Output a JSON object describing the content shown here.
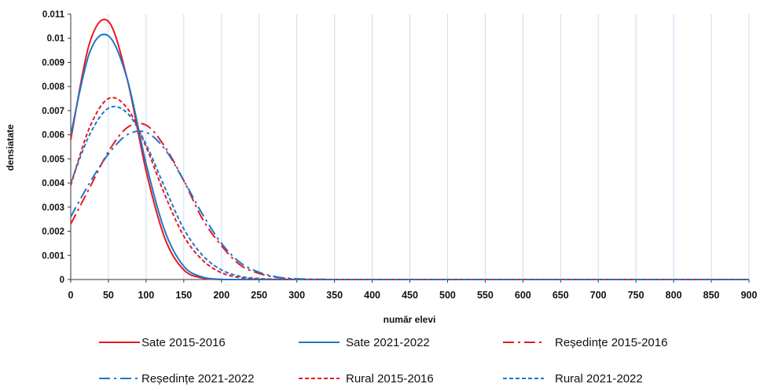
{
  "chart_data": {
    "type": "line",
    "title": "",
    "xlabel": "număr elevi",
    "ylabel": "densiatate",
    "xlim": [
      0,
      900
    ],
    "ylim": [
      0,
      0.011
    ],
    "x_ticks": [
      "0",
      "50",
      "100",
      "150",
      "200",
      "250",
      "300",
      "350",
      "400",
      "450",
      "500",
      "550",
      "600",
      "650",
      "700",
      "750",
      "800",
      "850",
      "900"
    ],
    "y_ticks": [
      "0",
      "0.001",
      "0.002",
      "0.003",
      "0.004",
      "0.005",
      "0.006",
      "0.007",
      "0.008",
      "0.009",
      "0.01",
      "0.011"
    ],
    "grid": "vertical",
    "legend_position": "bottom",
    "x": [
      0,
      25,
      50,
      75,
      100,
      125,
      150,
      175,
      200,
      225,
      250,
      275,
      300,
      350,
      400,
      500,
      600,
      700,
      800,
      900
    ],
    "series": [
      {
        "name": "Sate 2015-2016",
        "color": "#e8191f",
        "dash": "solid",
        "values": [
          0.0058,
          0.0098,
          0.0107,
          0.0083,
          0.0045,
          0.0017,
          0.0004,
          6e-05,
          0,
          0,
          0,
          0,
          0,
          0,
          0,
          0,
          0,
          0,
          0,
          0
        ]
      },
      {
        "name": "Sate 2021-2022",
        "color": "#1f77c9",
        "dash": "solid",
        "values": [
          0.006,
          0.0094,
          0.0101,
          0.0083,
          0.0048,
          0.002,
          0.00055,
          0.0001,
          1e-05,
          0,
          0,
          0,
          0,
          0,
          0,
          0,
          0,
          0,
          0,
          0
        ]
      },
      {
        "name": "Reședințe 2015-2016",
        "color": "#e8191f",
        "dash": "dashdot",
        "values": [
          0.0023,
          0.0038,
          0.0053,
          0.0063,
          0.0064,
          0.0055,
          0.0041,
          0.0025,
          0.0014,
          0.0006,
          0.00025,
          8e-05,
          2e-05,
          0,
          0,
          0,
          0,
          0,
          0,
          0
        ]
      },
      {
        "name": "Reședințe 2021-2022",
        "color": "#1f77c9",
        "dash": "dashdot",
        "values": [
          0.0026,
          0.004,
          0.0052,
          0.006,
          0.0061,
          0.0054,
          0.0041,
          0.0027,
          0.0015,
          0.0007,
          0.0003,
          0.0001,
          3e-05,
          0,
          0,
          0,
          0,
          0,
          0,
          0
        ]
      },
      {
        "name": "Rural 2015-2016",
        "color": "#e8191f",
        "dash": "dashed",
        "values": [
          0.0039,
          0.0063,
          0.0075,
          0.0071,
          0.0055,
          0.0035,
          0.0018,
          0.0008,
          0.00028,
          8e-05,
          2e-05,
          0,
          0,
          0,
          0,
          0,
          0,
          0,
          0,
          0
        ]
      },
      {
        "name": "Rural 2021-2022",
        "color": "#1f77c9",
        "dash": "dashed",
        "values": [
          0.004,
          0.006,
          0.0071,
          0.0069,
          0.0056,
          0.0038,
          0.0021,
          0.001,
          0.0004,
          0.00013,
          4e-05,
          1e-05,
          0,
          0,
          0,
          0,
          0,
          0,
          0,
          0
        ]
      }
    ]
  }
}
